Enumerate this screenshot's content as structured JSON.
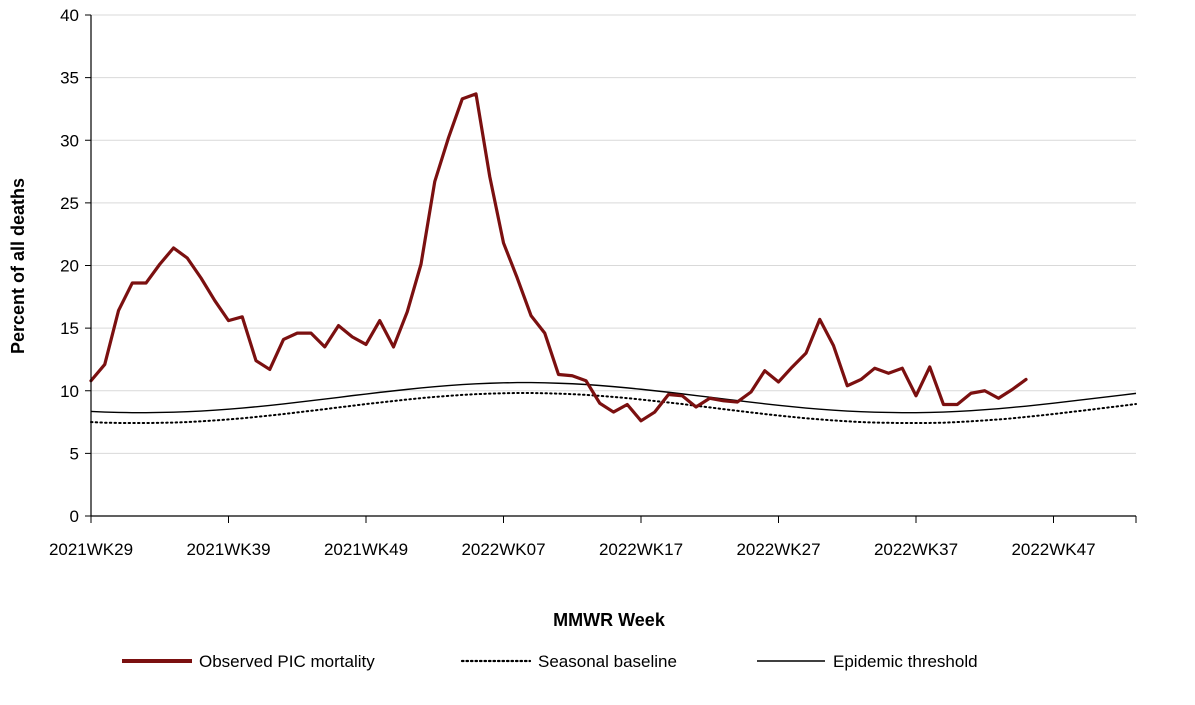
{
  "chart_data": {
    "type": "line",
    "title": "",
    "xlabel": "MMWR Week",
    "ylabel": "Percent of all deaths",
    "ylim": [
      0,
      40
    ],
    "yticks": [
      0,
      5,
      10,
      15,
      20,
      25,
      30,
      35,
      40
    ],
    "grid": "horizontal",
    "legend_position": "bottom",
    "x_start_week": "2021WK29",
    "x_end_week": "2022WK47",
    "xtick_labels": [
      "2021WK29",
      "2021WK39",
      "2021WK49",
      "2022WK07",
      "2022WK17",
      "2022WK27",
      "2022WK37",
      "2022WK47"
    ],
    "series": [
      {
        "name": "Observed PIC mortality",
        "color": "#7b1010",
        "style": "thick-solid",
        "values": [
          10.8,
          12.1,
          16.4,
          18.6,
          18.6,
          20.1,
          21.4,
          20.6,
          19.0,
          17.2,
          15.6,
          15.9,
          12.4,
          11.7,
          14.1,
          14.6,
          14.6,
          13.5,
          15.2,
          14.3,
          13.7,
          15.6,
          13.5,
          16.3,
          20.1,
          26.7,
          30.2,
          33.3,
          33.7,
          27.1,
          21.8,
          19.0,
          16.0,
          14.6,
          11.3,
          11.2,
          10.8,
          9.0,
          8.3,
          8.9,
          7.6,
          8.3,
          9.7,
          9.6,
          8.7,
          9.4,
          9.2,
          9.1,
          9.9,
          11.6,
          10.7,
          11.9,
          13.0,
          15.7,
          13.6,
          10.4,
          10.9,
          11.8,
          11.4,
          11.8,
          9.6,
          11.9,
          8.9,
          8.9,
          9.8,
          10.0,
          9.4,
          10.1,
          10.9
        ]
      },
      {
        "name": "Seasonal baseline",
        "color": "#000000",
        "style": "dotted",
        "values": [
          7.5,
          7.45,
          7.43,
          7.42,
          7.42,
          7.44,
          7.46,
          7.5,
          7.56,
          7.63,
          7.71,
          7.8,
          7.91,
          8.02,
          8.14,
          8.27,
          8.4,
          8.53,
          8.67,
          8.8,
          8.94,
          9.06,
          9.18,
          9.3,
          9.41,
          9.51,
          9.59,
          9.67,
          9.73,
          9.77,
          9.8,
          9.82,
          9.82,
          9.8,
          9.77,
          9.73,
          9.67,
          9.59,
          9.51,
          9.41,
          9.3,
          9.18,
          9.06,
          8.94,
          8.8,
          8.67,
          8.53,
          8.4,
          8.27,
          8.14,
          8.02,
          7.91,
          7.8,
          7.71,
          7.63,
          7.56,
          7.5,
          7.46,
          7.44,
          7.42,
          7.42,
          7.43,
          7.45,
          7.5,
          7.56,
          7.63,
          7.71,
          7.8,
          7.91,
          8.02,
          8.14,
          8.27,
          8.4,
          8.53,
          8.67,
          8.8,
          8.94
        ]
      },
      {
        "name": "Epidemic threshold",
        "color": "#000000",
        "style": "thin-solid",
        "values": [
          8.35,
          8.3,
          8.27,
          8.25,
          8.25,
          8.27,
          8.29,
          8.33,
          8.38,
          8.45,
          8.53,
          8.62,
          8.72,
          8.83,
          8.95,
          9.08,
          9.21,
          9.34,
          9.47,
          9.61,
          9.74,
          9.87,
          9.99,
          10.11,
          10.22,
          10.32,
          10.41,
          10.49,
          10.55,
          10.6,
          10.63,
          10.65,
          10.65,
          10.63,
          10.6,
          10.56,
          10.5,
          10.42,
          10.33,
          10.23,
          10.12,
          10.0,
          9.88,
          9.75,
          9.62,
          9.49,
          9.35,
          9.22,
          9.09,
          8.96,
          8.84,
          8.73,
          8.62,
          8.53,
          8.45,
          8.38,
          8.33,
          8.29,
          8.27,
          8.25,
          8.25,
          8.27,
          8.3,
          8.35,
          8.41,
          8.49,
          8.57,
          8.67,
          8.77,
          8.89,
          9.01,
          9.14,
          9.27,
          9.4,
          9.53,
          9.66,
          9.79
        ]
      }
    ]
  }
}
